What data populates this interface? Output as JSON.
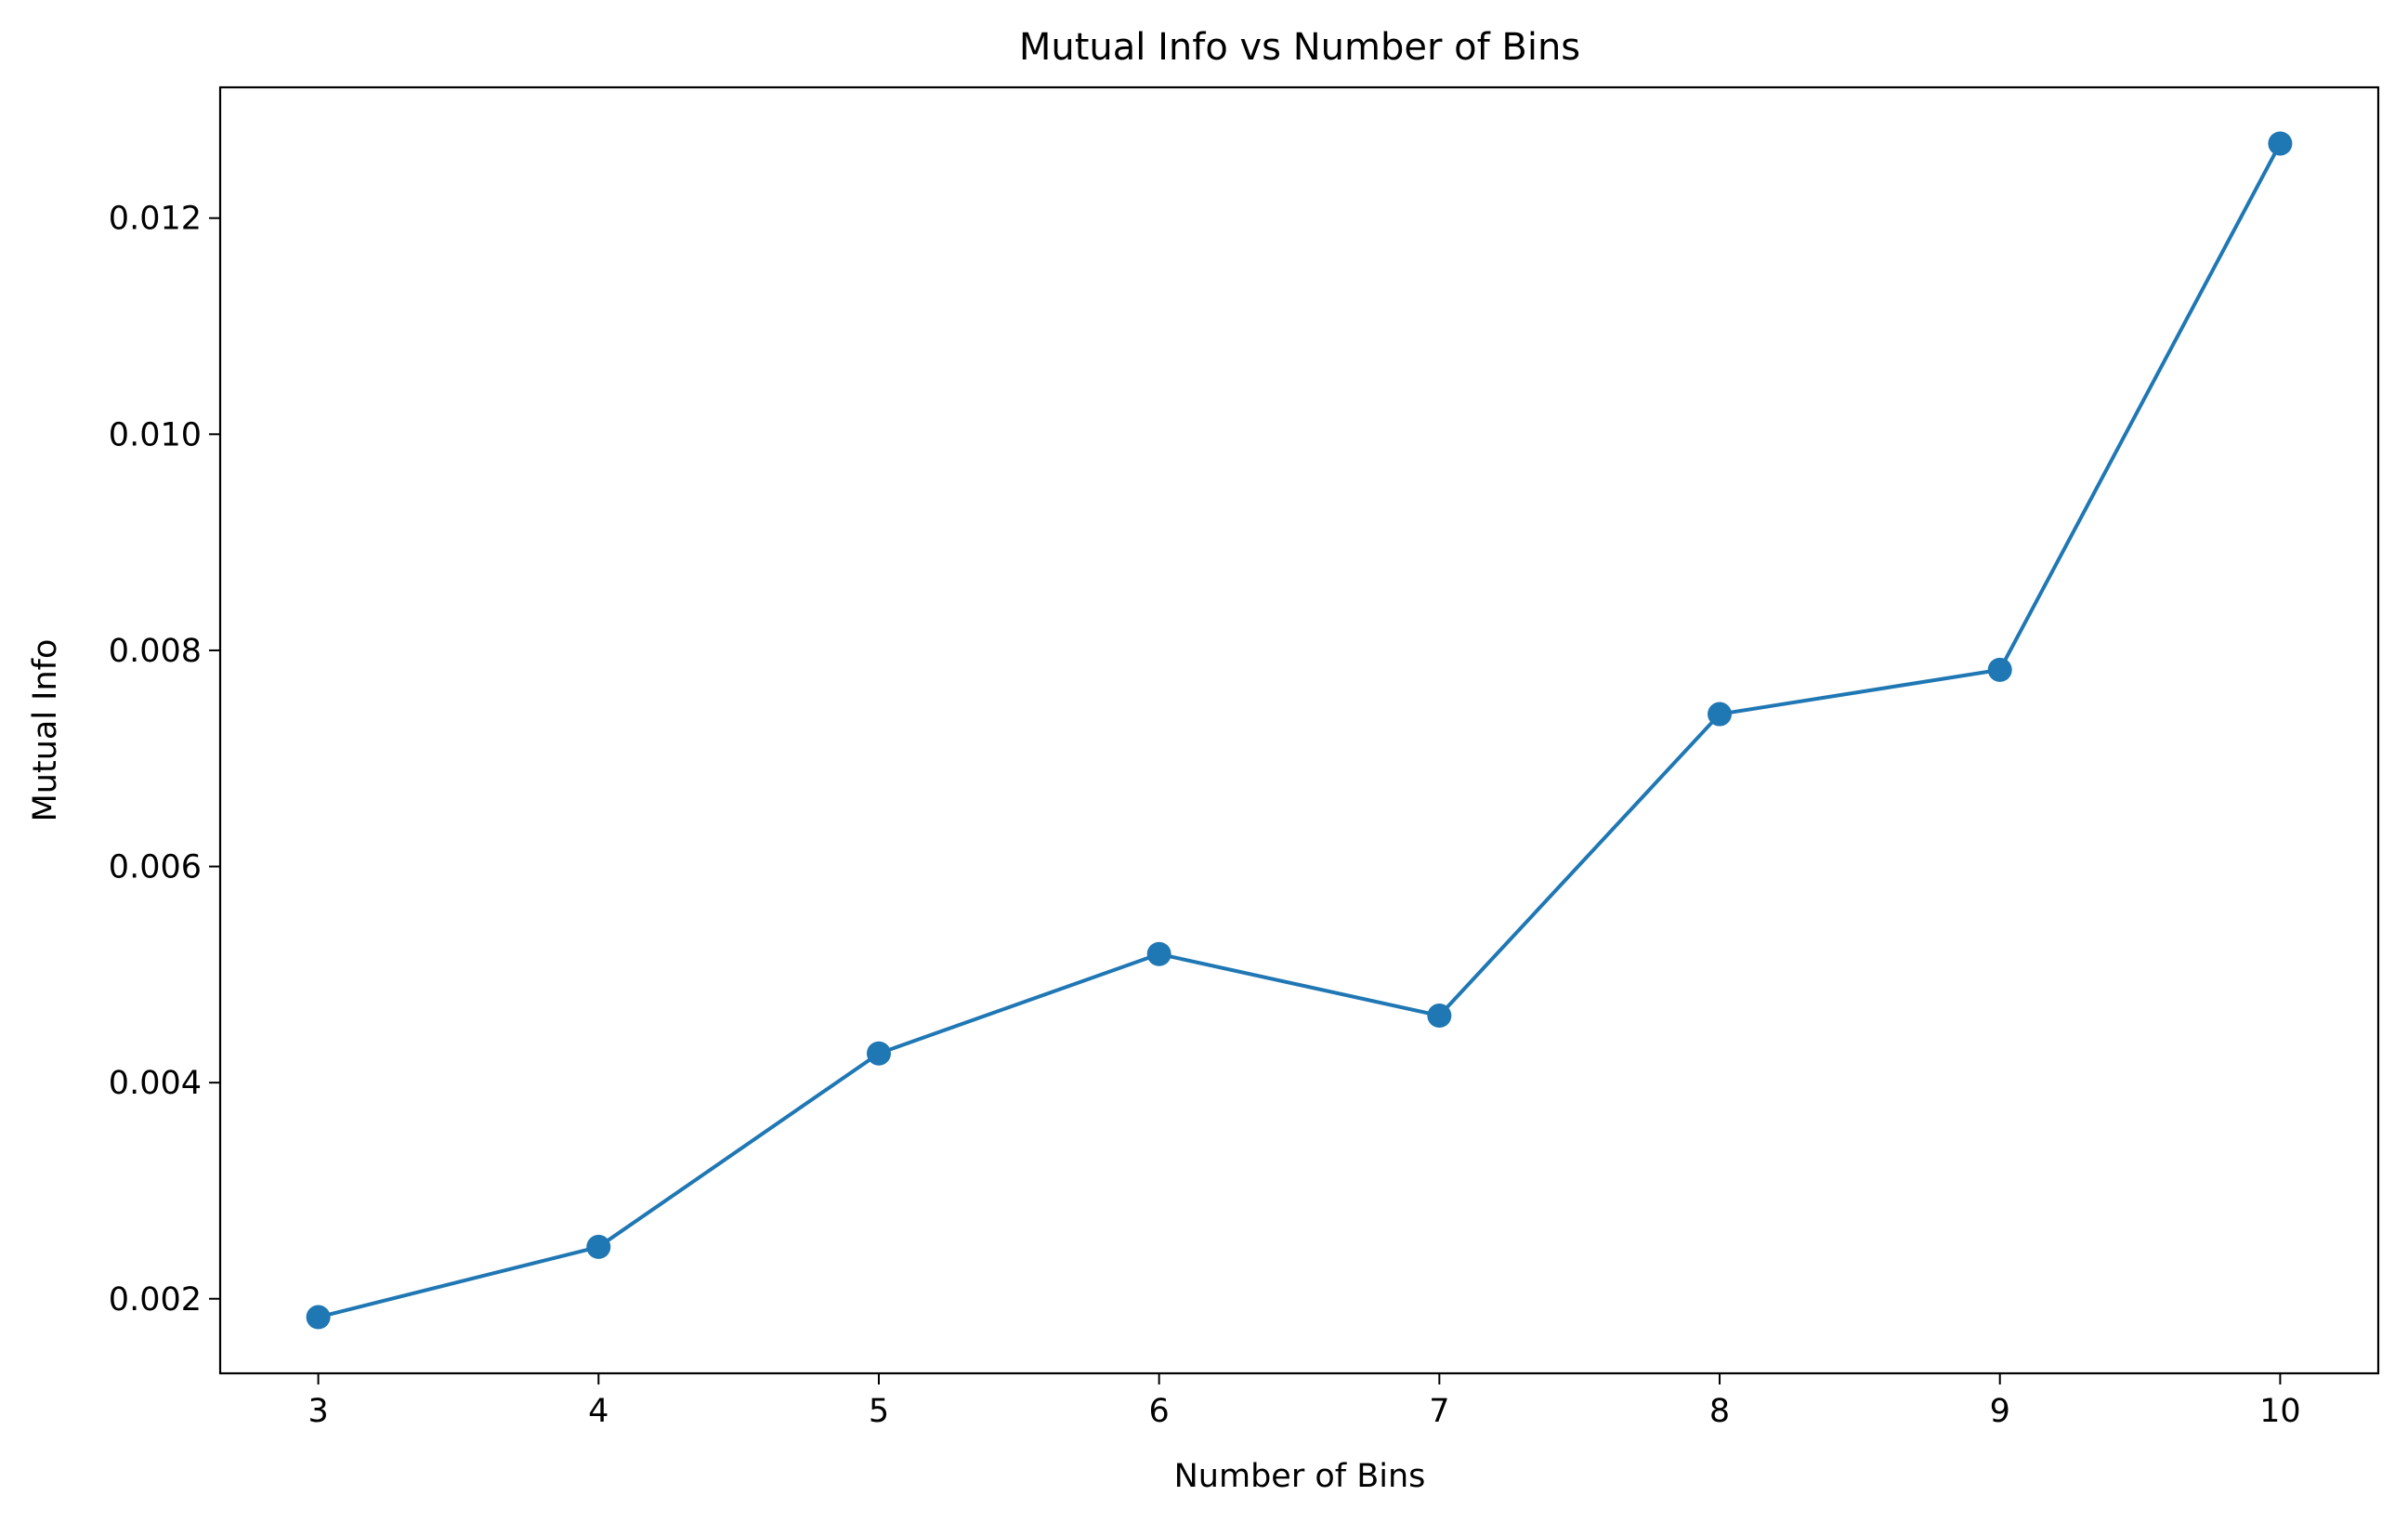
{
  "chart_data": {
    "type": "line",
    "title": "Mutual Info vs Number of Bins",
    "xlabel": "Number of Bins",
    "ylabel": "Mutual Info",
    "x": [
      3,
      4,
      5,
      6,
      7,
      8,
      9,
      10
    ],
    "series": [
      {
        "values": [
          0.00183,
          0.00248,
          0.00427,
          0.00519,
          0.00462,
          0.00741,
          0.00782,
          0.01269
        ],
        "color": "#1f77b4",
        "marker": "circle"
      }
    ],
    "xticks": [
      "3",
      "4",
      "5",
      "6",
      "7",
      "8",
      "9",
      "10"
    ],
    "yticks": [
      0.002,
      0.004,
      0.006,
      0.008,
      0.01,
      0.012
    ],
    "ytick_labels": [
      "0.002",
      "0.004",
      "0.006",
      "0.008",
      "0.010",
      "0.012"
    ],
    "xlim": [
      2.65,
      10.35
    ],
    "ylim": [
      0.00131,
      0.01321
    ],
    "grid": false,
    "legend": "none"
  }
}
